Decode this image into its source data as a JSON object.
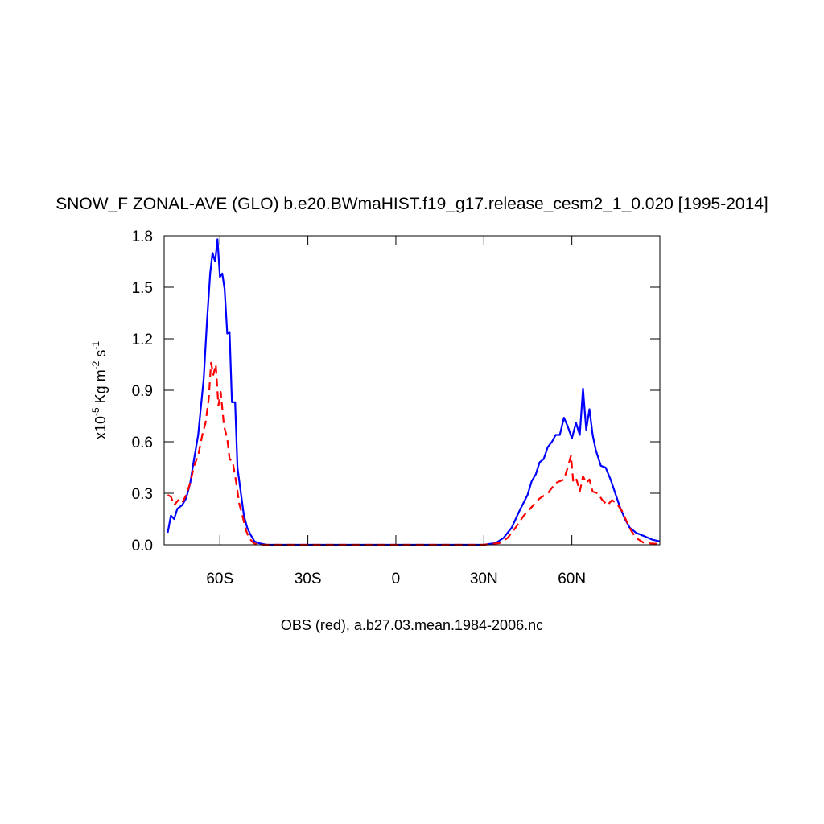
{
  "chart_data": {
    "type": "line",
    "title": "SNOW_F ZONAL-AVE (GLO) b.e20.BWmaHIST.f19_g17.release_cesm2_1_0.020 [1995-2014]",
    "xlabel": "OBS (red), a.b27.03.mean.1984-2006.nc",
    "ylabel": [
      {
        "text": "x10"
      },
      {
        "text": "-5",
        "sup": true
      },
      {
        "text": " Kg m"
      },
      {
        "text": "-2",
        "sup": true
      },
      {
        "text": " s"
      },
      {
        "text": "-1",
        "sup": true
      }
    ],
    "xlim": [
      -79,
      90
    ],
    "ylim": [
      0,
      1.8
    ],
    "xticks": [
      {
        "value": -60,
        "label": "60S"
      },
      {
        "value": -30,
        "label": "30S"
      },
      0,
      {
        "value": 30,
        "label": "30N"
      },
      {
        "value": 60,
        "label": "60N"
      }
    ],
    "yticks": [
      {
        "value": 0,
        "label": "0.0"
      },
      0.3,
      0.6,
      0.9,
      1.2,
      1.5,
      1.8
    ],
    "series": [
      {
        "color": "#0000ff",
        "style": "solid",
        "x": [
          -77.8,
          -76.7,
          -75.6,
          -74.5,
          -72.9,
          -71.5,
          -70.1,
          -68.8,
          -67.4,
          -66.6,
          -65.5,
          -64.4,
          -63.3,
          -62.5,
          -61.6,
          -60.8,
          -60.0,
          -59.2,
          -58.4,
          -57.5,
          -56.7,
          -55.9,
          -54.8,
          -54.0,
          -52.9,
          -51.8,
          -50.7,
          -49.6,
          -48.2,
          -46.8,
          -44.1,
          -20,
          0,
          20,
          29.9,
          34.0,
          36.7,
          39.5,
          42.2,
          44.9,
          46.3,
          47.7,
          49.0,
          50.4,
          51.8,
          53.2,
          54.5,
          55.9,
          57.3,
          58.6,
          60.0,
          61.4,
          62.7,
          63.8,
          64.9,
          66.0,
          67.1,
          68.2,
          69.9,
          71.5,
          73.2,
          74.8,
          76.4,
          78.1,
          79.7,
          81.9,
          84.7,
          87.4,
          89.9
        ],
        "values": [
          0.07,
          0.17,
          0.15,
          0.21,
          0.23,
          0.27,
          0.36,
          0.5,
          0.64,
          0.78,
          0.97,
          1.3,
          1.58,
          1.7,
          1.65,
          1.78,
          1.56,
          1.58,
          1.49,
          1.23,
          1.24,
          0.83,
          0.83,
          0.45,
          0.31,
          0.17,
          0.1,
          0.06,
          0.02,
          0.01,
          0,
          0,
          0,
          0,
          0,
          0.01,
          0.04,
          0.1,
          0.2,
          0.29,
          0.37,
          0.41,
          0.48,
          0.5,
          0.57,
          0.6,
          0.64,
          0.64,
          0.74,
          0.69,
          0.62,
          0.71,
          0.64,
          0.91,
          0.67,
          0.79,
          0.64,
          0.55,
          0.46,
          0.45,
          0.38,
          0.3,
          0.22,
          0.15,
          0.1,
          0.07,
          0.05,
          0.03,
          0.02
        ]
      },
      {
        "color": "#ff0000",
        "style": "dashed",
        "x": [
          -77.8,
          -76.7,
          -75.6,
          -74.2,
          -72.9,
          -71.5,
          -70.1,
          -68.8,
          -67.4,
          -66.0,
          -64.9,
          -63.8,
          -63.0,
          -62.2,
          -61.4,
          -60.5,
          -59.7,
          -58.6,
          -57.5,
          -56.7,
          -55.6,
          -54.5,
          -53.4,
          -52.3,
          -51.2,
          -50.1,
          -48.5,
          -46.8,
          -20,
          0,
          20,
          29.9,
          35.3,
          38.1,
          40.8,
          43.6,
          46.3,
          49.0,
          51.8,
          54.5,
          57.3,
          58.6,
          59.7,
          60.5,
          61.6,
          62.7,
          63.8,
          64.9,
          66.0,
          67.1,
          68.8,
          70.4,
          72.1,
          73.7,
          75.3,
          77.0,
          78.6,
          80.3,
          81.9,
          84.7,
          89.9
        ],
        "values": [
          0.29,
          0.28,
          0.23,
          0.26,
          0.24,
          0.29,
          0.36,
          0.46,
          0.52,
          0.64,
          0.71,
          0.85,
          1.06,
          0.99,
          1.05,
          0.81,
          0.89,
          0.69,
          0.62,
          0.5,
          0.48,
          0.37,
          0.24,
          0.17,
          0.09,
          0.04,
          0.01,
          0,
          0,
          0,
          0,
          0,
          0.01,
          0.04,
          0.1,
          0.17,
          0.22,
          0.27,
          0.3,
          0.36,
          0.38,
          0.45,
          0.52,
          0.36,
          0.38,
          0.31,
          0.4,
          0.36,
          0.38,
          0.31,
          0.3,
          0.26,
          0.23,
          0.26,
          0.24,
          0.2,
          0.14,
          0.08,
          0.04,
          0.01,
          0.005
        ]
      }
    ]
  }
}
